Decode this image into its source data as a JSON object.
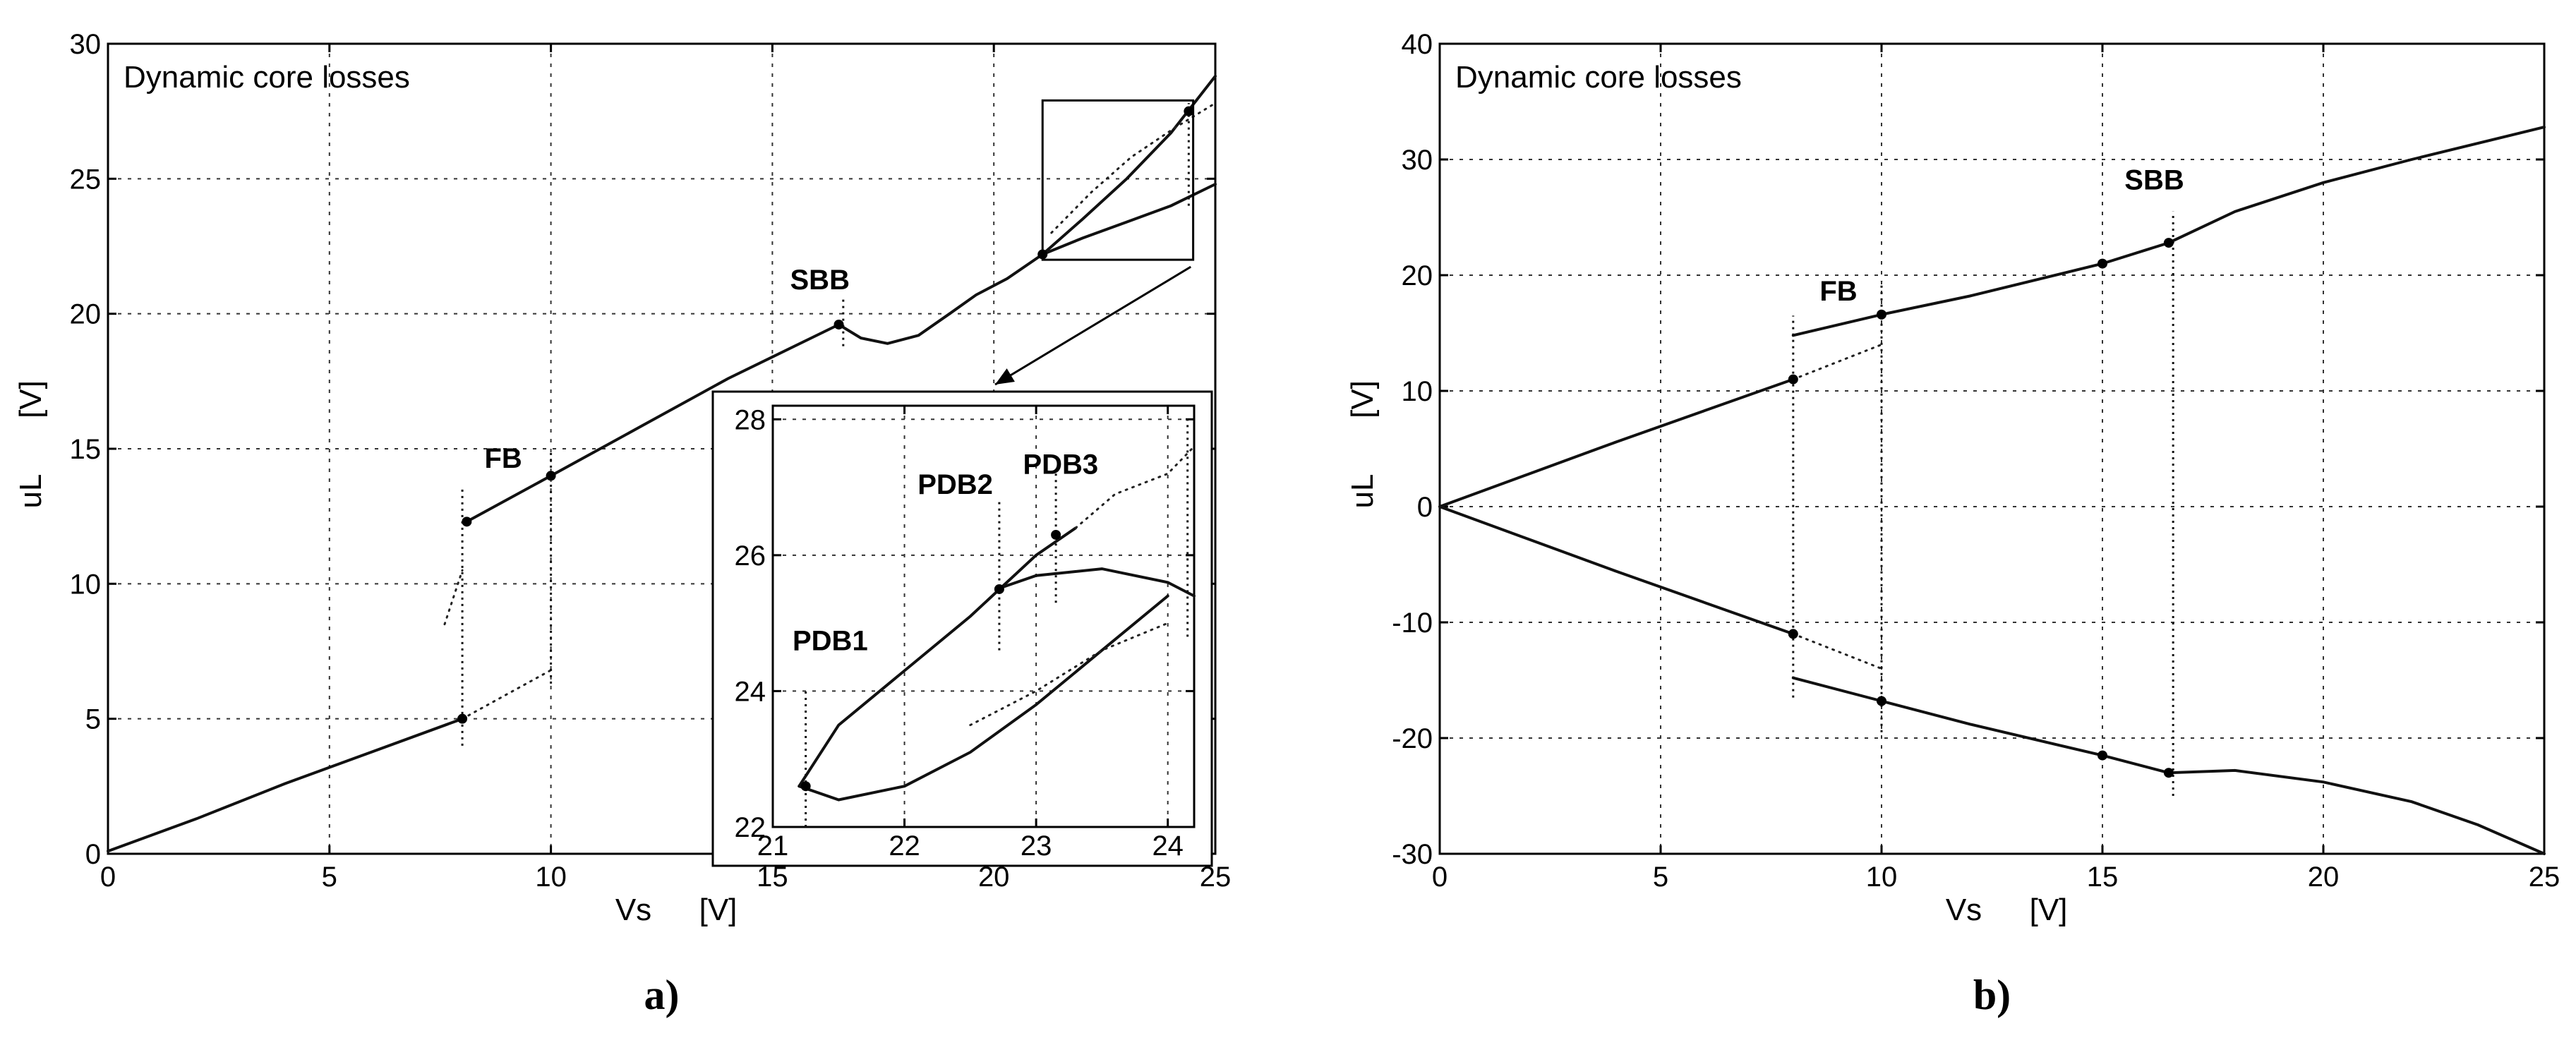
{
  "chart_data": [
    {
      "id": "a",
      "type": "line",
      "caption": "a)",
      "title": "Dynamic core losses",
      "xlabel": "Vs",
      "xunit": "[V]",
      "ylabel": "uL",
      "yunit": "[V]",
      "xlim": [
        0,
        25
      ],
      "ylim": [
        0,
        30
      ],
      "xticks": [
        0,
        5,
        10,
        15,
        20,
        25
      ],
      "yticks": [
        0,
        5,
        10,
        15,
        20,
        25,
        30
      ],
      "grid": true,
      "series": [
        {
          "style": "solid",
          "x": [
            0,
            2,
            4,
            6,
            8
          ],
          "y": [
            0.1,
            1.3,
            2.6,
            3.8,
            5.0
          ]
        },
        {
          "style": "dotted",
          "x": [
            8,
            9,
            10
          ],
          "y": [
            5.0,
            5.9,
            6.8
          ]
        },
        {
          "style": "dotted",
          "x": [
            7.6,
            8.0
          ],
          "y": [
            8.5,
            10.5
          ]
        },
        {
          "style": "solid",
          "x": [
            8.1,
            10,
            12,
            14,
            16.5
          ],
          "y": [
            12.3,
            14.0,
            15.8,
            17.6,
            19.6
          ]
        },
        {
          "style": "solid",
          "x": [
            16.5,
            17,
            17.6,
            18.3,
            19,
            19.6,
            20.3,
            21.1
          ],
          "y": [
            19.6,
            19.1,
            18.9,
            19.2,
            20.0,
            20.7,
            21.3,
            22.2
          ]
        },
        {
          "style": "solid",
          "x": [
            21.1,
            22,
            23,
            24,
            25
          ],
          "y": [
            22.2,
            23.5,
            25.0,
            26.7,
            28.8
          ]
        },
        {
          "style": "solid",
          "x": [
            21.1,
            22,
            23,
            24,
            25
          ],
          "y": [
            22.2,
            22.8,
            23.4,
            24.0,
            24.8
          ]
        },
        {
          "style": "dotted",
          "x": [
            21.3,
            22.2,
            23.1,
            24.1,
            25
          ],
          "y": [
            23.0,
            24.5,
            25.8,
            26.9,
            27.8
          ]
        }
      ],
      "markers": [
        {
          "x": 8.0,
          "y": 5.0
        },
        {
          "x": 8.1,
          "y": 12.3
        },
        {
          "x": 10.0,
          "y": 14.0
        },
        {
          "x": 16.5,
          "y": 19.6
        },
        {
          "x": 21.1,
          "y": 22.2
        },
        {
          "x": 24.4,
          "y": 27.5
        }
      ],
      "vlines": [
        {
          "x": 8.0,
          "y0": 4.0,
          "y1": 13.5
        },
        {
          "x": 10.0,
          "y0": 6.3,
          "y1": 15.0
        },
        {
          "x": 16.6,
          "y0": 18.8,
          "y1": 20.6
        },
        {
          "x": 24.4,
          "y0": 24.0,
          "y1": 27.8
        }
      ],
      "annotations": [
        {
          "text": "SBB",
          "x": 15.4,
          "y": 20.9
        },
        {
          "text": "FB",
          "x": 8.5,
          "y": 14.3
        }
      ],
      "zoom_box": {
        "x0": 21.1,
        "x1": 24.5,
        "y0": 22.0,
        "y1": 27.9
      },
      "inset": {
        "xlim": [
          21,
          24.2
        ],
        "ylim": [
          22,
          28.2
        ],
        "xticks": [
          21,
          22,
          23,
          24
        ],
        "yticks": [
          22,
          24,
          26,
          28
        ],
        "series": [
          {
            "style": "solid",
            "x": [
              21.2,
              21.5,
              22,
              22.5,
              23,
              23.3
            ],
            "y": [
              22.6,
              23.5,
              24.3,
              25.1,
              26.0,
              26.4
            ]
          },
          {
            "style": "solid",
            "x": [
              21.2,
              21.5,
              22,
              22.5,
              23,
              23.5,
              24.0
            ],
            "y": [
              22.6,
              22.4,
              22.6,
              23.1,
              23.8,
              24.6,
              25.4
            ]
          },
          {
            "style": "solid",
            "x": [
              22.7,
              23.0,
              23.5,
              24.0,
              24.2
            ],
            "y": [
              25.5,
              25.7,
              25.8,
              25.6,
              25.4
            ]
          },
          {
            "style": "dotted",
            "x": [
              23.3,
              23.6,
              24.0,
              24.2
            ],
            "y": [
              26.4,
              26.9,
              27.2,
              27.6
            ]
          },
          {
            "style": "dotted",
            "x": [
              22.5,
              23.0,
              23.5,
              24.0
            ],
            "y": [
              23.5,
              24.0,
              24.6,
              25.0
            ]
          }
        ],
        "markers": [
          {
            "x": 21.25,
            "y": 22.6
          },
          {
            "x": 22.72,
            "y": 25.5
          },
          {
            "x": 23.15,
            "y": 26.3
          }
        ],
        "vlines": [
          {
            "x": 21.25,
            "y0": 22.0,
            "y1": 24.0
          },
          {
            "x": 22.72,
            "y0": 24.6,
            "y1": 26.8
          },
          {
            "x": 23.15,
            "y0": 25.3,
            "y1": 27.2
          },
          {
            "x": 24.15,
            "y0": 24.8,
            "y1": 28.0
          }
        ],
        "annotations": [
          {
            "text": "PDB1",
            "x": 21.15,
            "y": 24.6
          },
          {
            "text": "PDB2",
            "x": 22.1,
            "y": 26.9
          },
          {
            "text": "PDB3",
            "x": 22.9,
            "y": 27.2
          }
        ]
      }
    },
    {
      "id": "b",
      "type": "line",
      "caption": "b)",
      "title": "Dynamic core losses",
      "xlabel": "Vs",
      "xunit": "[V]",
      "ylabel": "uL",
      "yunit": "[V]",
      "xlim": [
        0,
        25
      ],
      "ylim": [
        -30,
        40
      ],
      "xticks": [
        0,
        5,
        10,
        15,
        20,
        25
      ],
      "yticks": [
        -30,
        -20,
        -10,
        0,
        10,
        20,
        30,
        40
      ],
      "grid": true,
      "series": [
        {
          "style": "solid",
          "x": [
            0,
            2,
            4,
            6,
            8
          ],
          "y": [
            0,
            2.8,
            5.6,
            8.3,
            11.0
          ]
        },
        {
          "style": "dotted",
          "x": [
            8,
            9,
            10
          ],
          "y": [
            11.0,
            12.5,
            14.0
          ]
        },
        {
          "style": "solid",
          "x": [
            8,
            10,
            12,
            15,
            16.5,
            18,
            20,
            22,
            25
          ],
          "y": [
            14.8,
            16.6,
            18.2,
            21.0,
            22.8,
            25.5,
            28.0,
            30.0,
            32.8
          ]
        },
        {
          "style": "solid",
          "x": [
            0,
            2,
            4,
            6,
            8
          ],
          "y": [
            0,
            -2.8,
            -5.6,
            -8.3,
            -11.0
          ]
        },
        {
          "style": "dotted",
          "x": [
            8,
            9,
            10
          ],
          "y": [
            -11.0,
            -12.5,
            -14.0
          ]
        },
        {
          "style": "solid",
          "x": [
            8,
            10,
            12,
            15,
            16.5,
            18,
            20,
            22,
            23.5,
            25
          ],
          "y": [
            -14.8,
            -16.8,
            -18.8,
            -21.5,
            -23.0,
            -22.8,
            -23.8,
            -25.5,
            -27.5,
            -30.0
          ]
        }
      ],
      "markers": [
        {
          "x": 8.0,
          "y": 11.0
        },
        {
          "x": 8.0,
          "y": -11.0
        },
        {
          "x": 10.0,
          "y": 16.6
        },
        {
          "x": 10.0,
          "y": -16.8
        },
        {
          "x": 15.0,
          "y": 21.0
        },
        {
          "x": 15.0,
          "y": -21.5
        },
        {
          "x": 16.5,
          "y": 22.8
        },
        {
          "x": 16.5,
          "y": -23.0
        }
      ],
      "vlines": [
        {
          "x": 8.0,
          "y0": -16.5,
          "y1": 16.5
        },
        {
          "x": 10.0,
          "y0": -19.5,
          "y1": 19.5
        },
        {
          "x": 16.6,
          "y0": -25.0,
          "y1": 25.5
        }
      ],
      "annotations": [
        {
          "text": "FB",
          "x": 8.6,
          "y": 17.8
        },
        {
          "text": "SBB",
          "x": 15.5,
          "y": 27.4
        }
      ]
    }
  ]
}
